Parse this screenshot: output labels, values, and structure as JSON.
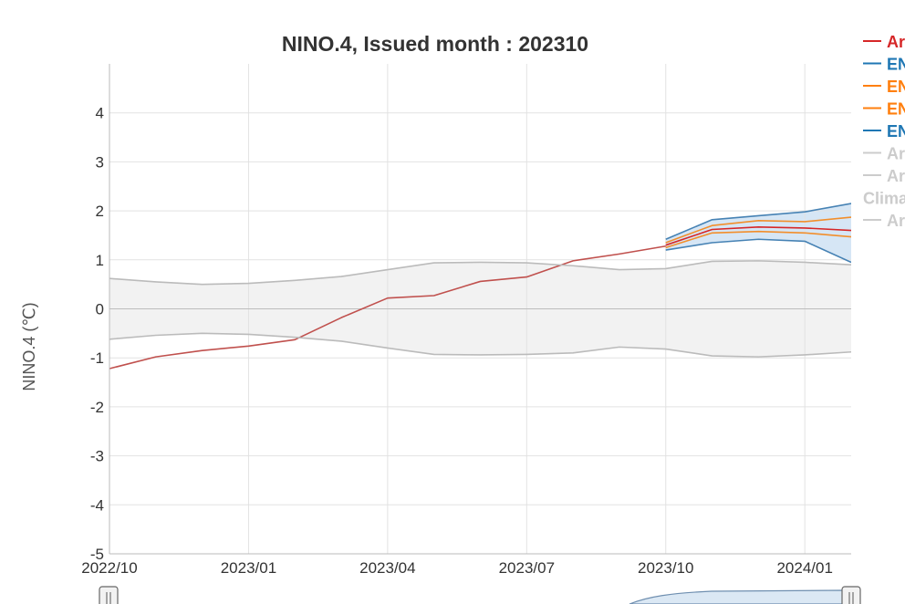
{
  "chart_data": {
    "type": "line",
    "title": "NINO.4, Issued month : 202310",
    "ylabel": "NINO.4 (℃)",
    "xlabel": "",
    "ylim": [
      -5,
      5
    ],
    "yticks": [
      "-5",
      "-4",
      "-3",
      "-2",
      "-1",
      "0",
      "1",
      "2",
      "3",
      "4"
    ],
    "x_index": [
      "2022/10",
      "2022/11",
      "2022/12",
      "2023/01",
      "2023/02",
      "2023/03",
      "2023/04",
      "2023/05",
      "2023/06",
      "2023/07",
      "2023/08",
      "2023/09",
      "2023/10",
      "2023/11",
      "2023/12",
      "2024/01",
      "2024/02"
    ],
    "xticks": [
      {
        "label": "2022/10",
        "value": "2022/10"
      },
      {
        "label": "2023/01",
        "value": "2023/01"
      },
      {
        "label": "2023/04",
        "value": "2023/04"
      },
      {
        "label": "2023/07",
        "value": "2023/07"
      },
      {
        "label": "2023/10",
        "value": "2023/10"
      },
      {
        "label": "2024/01",
        "value": "2024/01"
      }
    ],
    "grid": true,
    "legend_position": "right (partially cut off)",
    "legend": [
      {
        "label": "Ar",
        "color": "#d62728",
        "marker": "line"
      },
      {
        "label": "EN",
        "color": "#1f77b4",
        "marker": "line"
      },
      {
        "label": "EN",
        "color": "#ff7f0e",
        "marker": "line"
      },
      {
        "label": "EN",
        "color": "#ff7f0e",
        "marker": "line"
      },
      {
        "label": "EN",
        "color": "#1f77b4",
        "marker": "line"
      },
      {
        "label": "Ar",
        "color": "#cccccc",
        "marker": "line"
      },
      {
        "label": "Ar",
        "color": "#cccccc",
        "marker": "line"
      },
      {
        "label": "Clima",
        "color": "#cccccc",
        "marker": "none"
      },
      {
        "label": "Ar",
        "color": "#cccccc",
        "marker": "line"
      }
    ],
    "series": [
      {
        "color": "#c0504d",
        "x": [
          "2022/10",
          "2022/11",
          "2022/12",
          "2023/01",
          "2023/02",
          "2023/03",
          "2023/04",
          "2023/05",
          "2023/06",
          "2023/07",
          "2023/08",
          "2023/09",
          "2023/10"
        ],
        "values": [
          -1.22,
          -0.98,
          -0.85,
          -0.76,
          -0.63,
          -0.18,
          0.22,
          0.27,
          0.56,
          0.65,
          0.98,
          1.12,
          1.28
        ]
      },
      {
        "color": "#4682b4",
        "x": [
          "2023/10",
          "2023/11",
          "2023/12",
          "2024/01",
          "2024/02"
        ],
        "values": [
          1.42,
          1.82,
          1.9,
          1.98,
          2.15
        ]
      },
      {
        "color": "#f28e2b",
        "x": [
          "2023/10",
          "2023/11",
          "2023/12",
          "2024/01",
          "2024/02"
        ],
        "values": [
          1.35,
          1.7,
          1.8,
          1.78,
          1.87
        ]
      },
      {
        "color": "#d62728",
        "x": [
          "2023/10",
          "2023/11",
          "2023/12",
          "2024/01",
          "2024/02"
        ],
        "values": [
          1.3,
          1.62,
          1.67,
          1.65,
          1.6
        ]
      },
      {
        "color": "#f28e2b",
        "x": [
          "2023/10",
          "2023/11",
          "2023/12",
          "2024/01",
          "2024/02"
        ],
        "values": [
          1.25,
          1.55,
          1.58,
          1.55,
          1.47
        ]
      },
      {
        "color": "#4682b4",
        "x": [
          "2023/10",
          "2023/11",
          "2023/12",
          "2024/01",
          "2024/02"
        ],
        "values": [
          1.2,
          1.35,
          1.42,
          1.38,
          0.95
        ]
      },
      {
        "color": "#bbbbbb",
        "x": [
          "2022/10",
          "2022/11",
          "2022/12",
          "2023/01",
          "2023/02",
          "2023/03",
          "2023/04",
          "2023/05",
          "2023/06",
          "2023/07",
          "2023/08",
          "2023/09",
          "2023/10",
          "2023/11",
          "2023/12",
          "2024/01",
          "2024/02"
        ],
        "values": [
          0.62,
          0.55,
          0.5,
          0.52,
          0.58,
          0.66,
          0.8,
          0.94,
          0.95,
          0.94,
          0.88,
          0.8,
          0.82,
          0.97,
          0.98,
          0.95,
          0.9
        ]
      },
      {
        "color": "#bbbbbb",
        "x": [
          "2022/10",
          "2022/11",
          "2022/12",
          "2023/01",
          "2023/02",
          "2023/03",
          "2023/04",
          "2023/05",
          "2023/06",
          "2023/07",
          "2023/08",
          "2023/09",
          "2023/10",
          "2023/11",
          "2023/12",
          "2024/01",
          "2024/02"
        ],
        "values": [
          -0.62,
          -0.54,
          -0.5,
          -0.52,
          -0.58,
          -0.66,
          -0.8,
          -0.93,
          -0.94,
          -0.93,
          -0.9,
          -0.78,
          -0.82,
          -0.96,
          -0.98,
          -0.94,
          -0.88
        ]
      }
    ],
    "bands": [
      {
        "color": "#f2f2f2",
        "upper_series": 6,
        "lower_series": 7
      },
      {
        "color": "#d6e6f5",
        "upper_series": 1,
        "lower_series": 5
      }
    ]
  }
}
